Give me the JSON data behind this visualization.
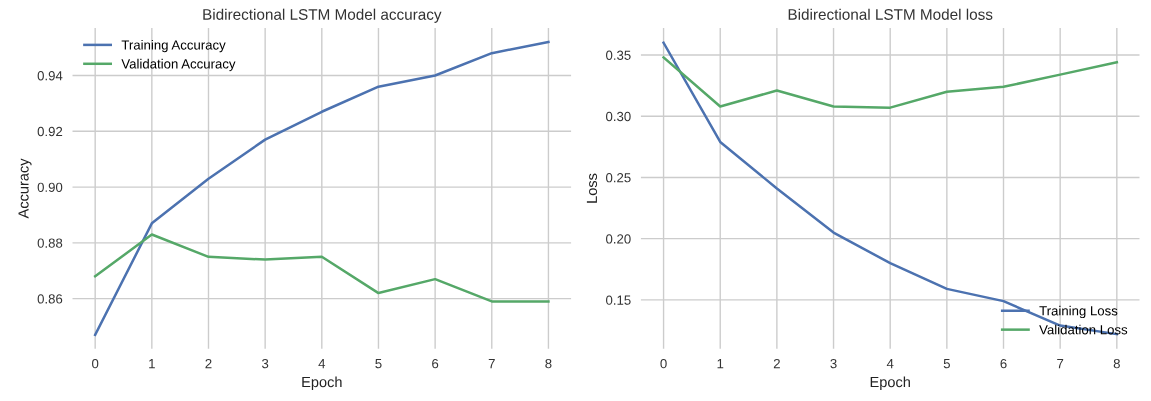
{
  "chart_data": [
    {
      "type": "line",
      "title": "Bidirectional LSTM Model accuracy",
      "xlabel": "Epoch",
      "ylabel": "Accuracy",
      "x": [
        0,
        1,
        2,
        3,
        4,
        5,
        6,
        7,
        8
      ],
      "series": [
        {
          "name": "Training Accuracy",
          "color": "#4c72b0",
          "values": [
            0.847,
            0.887,
            0.903,
            0.917,
            0.927,
            0.936,
            0.94,
            0.948,
            0.952
          ]
        },
        {
          "name": "Validation Accuracy",
          "color": "#55a868",
          "values": [
            0.868,
            0.883,
            0.875,
            0.874,
            0.875,
            0.862,
            0.867,
            0.859,
            0.859
          ]
        }
      ],
      "xlim": [
        -0.4,
        8.4
      ],
      "xticks": [
        0,
        1,
        2,
        3,
        4,
        5,
        6,
        7,
        8
      ],
      "ylim": [
        0.842,
        0.957
      ],
      "yticks": [
        {
          "value": 0.86,
          "label": "0.86"
        },
        {
          "value": 0.88,
          "label": "0.88"
        },
        {
          "value": 0.9,
          "label": "0.90"
        },
        {
          "value": 0.92,
          "label": "0.92"
        },
        {
          "value": 0.94,
          "label": "0.94"
        }
      ],
      "grid": true,
      "legend": "top left"
    },
    {
      "type": "line",
      "title": "Bidirectional LSTM Model loss",
      "xlabel": "Epoch",
      "ylabel": "Loss",
      "x": [
        0,
        1,
        2,
        3,
        4,
        5,
        6,
        7,
        8
      ],
      "series": [
        {
          "name": "Training Loss",
          "color": "#4c72b0",
          "values": [
            0.36,
            0.279,
            0.241,
            0.205,
            0.18,
            0.159,
            0.149,
            0.129,
            0.122
          ]
        },
        {
          "name": "Validation Loss",
          "color": "#55a868",
          "values": [
            0.348,
            0.308,
            0.321,
            0.308,
            0.307,
            0.32,
            0.324,
            0.334,
            0.344
          ]
        }
      ],
      "xlim": [
        -0.4,
        8.4
      ],
      "xticks": [
        0,
        1,
        2,
        3,
        4,
        5,
        6,
        7,
        8
      ],
      "ylim": [
        0.11,
        0.372
      ],
      "yticks": [
        {
          "value": 0.15,
          "label": "0.15"
        },
        {
          "value": 0.2,
          "label": "0.20"
        },
        {
          "value": 0.25,
          "label": "0.25"
        },
        {
          "value": 0.3,
          "label": "0.30"
        },
        {
          "value": 0.35,
          "label": "0.35"
        }
      ],
      "grid": true,
      "legend": "bottom right"
    }
  ]
}
